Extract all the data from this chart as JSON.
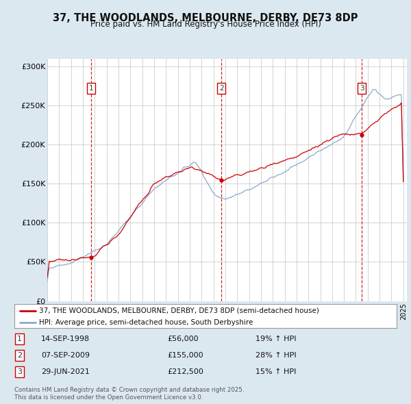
{
  "title": "37, THE WOODLANDS, MELBOURNE, DERBY, DE73 8DP",
  "subtitle": "Price paid vs. HM Land Registry's House Price Index (HPI)",
  "sales": [
    {
      "date": "1998-09-14",
      "price": 56000,
      "label": "1",
      "hpi_pct": "19% ↑ HPI",
      "display_date": "14-SEP-1998"
    },
    {
      "date": "2009-09-07",
      "price": 155000,
      "label": "2",
      "hpi_pct": "28% ↑ HPI",
      "display_date": "07-SEP-2009"
    },
    {
      "date": "2021-06-29",
      "price": 212500,
      "label": "3",
      "hpi_pct": "15% ↑ HPI",
      "display_date": "29-JUN-2021"
    }
  ],
  "legend_property": "37, THE WOODLANDS, MELBOURNE, DERBY, DE73 8DP (semi-detached house)",
  "legend_hpi": "HPI: Average price, semi-detached house, South Derbyshire",
  "property_color": "#cc0000",
  "hpi_color": "#88aacc",
  "vline_color": "#cc0000",
  "marker_color": "#cc0000",
  "background_color": "#dce8f0",
  "plot_bg_color": "#ffffff",
  "grid_color": "#cccccc",
  "ylim": [
    0,
    310000
  ],
  "yticks": [
    0,
    50000,
    100000,
    150000,
    200000,
    250000,
    300000
  ],
  "ytick_labels": [
    "£0",
    "£50K",
    "£100K",
    "£150K",
    "£200K",
    "£250K",
    "£300K"
  ],
  "sale_years": [
    1998.71,
    2009.68,
    2021.49
  ],
  "sale_prices": [
    56000,
    155000,
    212500
  ],
  "copyright_text": "Contains HM Land Registry data © Crown copyright and database right 2025.\nThis data is licensed under the Open Government Licence v3.0."
}
